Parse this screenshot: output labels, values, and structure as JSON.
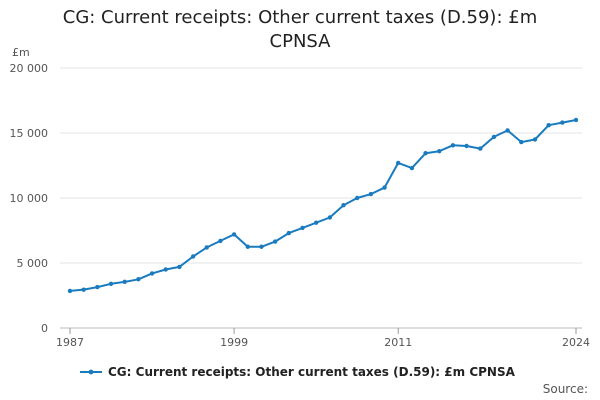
{
  "chart_data": {
    "type": "line",
    "title_line1": "CG: Current receipts: Other current taxes (D.59): £m",
    "title_line2": "CPNSA",
    "ylabel": "£m",
    "xlabel": "",
    "ylim": [
      0,
      20000
    ],
    "yticks": [
      0,
      5000,
      10000,
      15000,
      20000
    ],
    "ytick_labels": [
      "0",
      "5 000",
      "10 000",
      "15 000",
      "20 000"
    ],
    "xlim": [
      1987,
      2024
    ],
    "xticks": [
      1987,
      1999,
      2011,
      2024
    ],
    "xtick_labels": [
      "1987",
      "1999",
      "2011",
      "2024"
    ],
    "grid": true,
    "legend_position": "bottom",
    "series": [
      {
        "name": "CG: Current receipts: Other current taxes (D.59): £m CPNSA",
        "color": "#1a7bbf",
        "x": [
          1987,
          1988,
          1989,
          1990,
          1991,
          1992,
          1993,
          1994,
          1995,
          1996,
          1997,
          1998,
          1999,
          2000,
          2001,
          2002,
          2003,
          2004,
          2005,
          2006,
          2007,
          2008,
          2009,
          2010,
          2011,
          2012,
          2013,
          2014,
          2015,
          2016,
          2017,
          2018,
          2019,
          2020,
          2021,
          2022,
          2023,
          2024
        ],
        "values": [
          2850,
          2950,
          3150,
          3400,
          3550,
          3750,
          4200,
          4500,
          4700,
          5500,
          6200,
          6700,
          7200,
          6250,
          6250,
          6650,
          7300,
          7700,
          8100,
          8500,
          9450,
          10000,
          10300,
          10800,
          12700,
          12300,
          13450,
          13600,
          14050,
          14000,
          13800,
          14700,
          15200,
          14300,
          14500,
          15600,
          15800,
          16000
        ]
      }
    ]
  },
  "source_label": "Source:"
}
